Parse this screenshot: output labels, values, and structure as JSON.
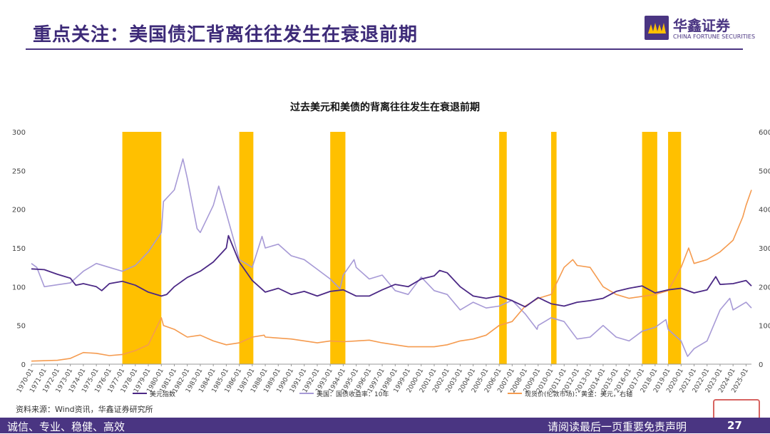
{
  "slide": {
    "title": "重点关注：美国债汇背离往往发生在衰退前期",
    "source": "资料来源：Wind资讯，华鑫证券研究所",
    "footer_left": "诚信、专业、稳健、高效",
    "footer_right": "请阅读最后一页重要免责声明",
    "page_number": "27",
    "logo_cn": "华鑫证券",
    "logo_en": "CHINA FORTUNE SECURITIES"
  },
  "colors": {
    "brand": "#4a3582",
    "recession": "#ffc000",
    "usd_index": "#4b2885",
    "us_10y": "#a79ad6",
    "gold": "#f59b4f"
  },
  "chart_data": {
    "type": "line",
    "title": "过去美元和美债的背离往往发生在衰退前期",
    "x_tick_labels": [
      "1970-01",
      "1971-01",
      "1972-01",
      "1973-01",
      "1974-01",
      "1975-01",
      "1976-01",
      "1977-01",
      "1978-01",
      "1979-01",
      "1980-01",
      "1981-01",
      "1982-01",
      "1983-01",
      "1984-01",
      "1985-01",
      "1986-01",
      "1987-01",
      "1988-01",
      "1989-01",
      "1990-01",
      "1991-01",
      "1992-01",
      "1993-01",
      "1994-01",
      "1995-01",
      "1996-01",
      "1997-01",
      "1998-01",
      "1999-01",
      "2000-01",
      "2001-01",
      "2002-01",
      "2003-01",
      "2004-01",
      "2005-01",
      "2006-01",
      "2007-01",
      "2008-01",
      "2009-01",
      "2010-01",
      "2011-01",
      "2012-01",
      "2013-01",
      "2014-01",
      "2015-01",
      "2016-01",
      "2017-01",
      "2018-01",
      "2019-01",
      "2020-01",
      "2021-01",
      "2022-01",
      "2023-01",
      "2024-01",
      "2025-01"
    ],
    "x_range": [
      "1970-01",
      "2025-06"
    ],
    "y_left": {
      "ticks": [
        0,
        50,
        100,
        150,
        200,
        250,
        300
      ],
      "range": [
        0,
        300
      ]
    },
    "y_right": {
      "ticks": [
        0,
        100,
        200,
        300,
        400,
        500,
        600
      ],
      "range": [
        0,
        600
      ]
    },
    "recession_bands": [
      {
        "start": "1977-01",
        "end": "1980-01"
      },
      {
        "start": "1986-01",
        "end": "1987-02"
      },
      {
        "start": "1993-01",
        "end": "1994-03"
      },
      {
        "start": "2006-01",
        "end": "2006-08"
      },
      {
        "start": "2010-01",
        "end": "2010-06"
      },
      {
        "start": "2017-01",
        "end": "2018-03"
      },
      {
        "start": "2019-01",
        "end": "2020-01"
      }
    ],
    "series": [
      {
        "name": "美元指数",
        "axis": "left",
        "points": [
          [
            "1970-01",
            123
          ],
          [
            "1971-01",
            122
          ],
          [
            "1972-01",
            116
          ],
          [
            "1973-01",
            111
          ],
          [
            "1973-06",
            102
          ],
          [
            "1974-01",
            104
          ],
          [
            "1975-01",
            100
          ],
          [
            "1975-06",
            95
          ],
          [
            "1976-01",
            104
          ],
          [
            "1977-01",
            107
          ],
          [
            "1978-01",
            102
          ],
          [
            "1979-01",
            93
          ],
          [
            "1980-01",
            88
          ],
          [
            "1980-06",
            90
          ],
          [
            "1981-01",
            100
          ],
          [
            "1982-01",
            112
          ],
          [
            "1983-01",
            120
          ],
          [
            "1984-01",
            132
          ],
          [
            "1985-01",
            150
          ],
          [
            "1985-03",
            166
          ],
          [
            "1986-01",
            132
          ],
          [
            "1987-01",
            108
          ],
          [
            "1988-01",
            93
          ],
          [
            "1989-01",
            98
          ],
          [
            "1990-01",
            90
          ],
          [
            "1991-01",
            94
          ],
          [
            "1992-01",
            88
          ],
          [
            "1993-01",
            94
          ],
          [
            "1994-01",
            96
          ],
          [
            "1995-01",
            88
          ],
          [
            "1996-01",
            88
          ],
          [
            "1997-01",
            96
          ],
          [
            "1998-01",
            103
          ],
          [
            "1999-01",
            100
          ],
          [
            "2000-01",
            110
          ],
          [
            "2001-01",
            114
          ],
          [
            "2001-06",
            121
          ],
          [
            "2002-01",
            118
          ],
          [
            "2003-01",
            100
          ],
          [
            "2004-01",
            88
          ],
          [
            "2005-01",
            85
          ],
          [
            "2006-01",
            88
          ],
          [
            "2007-01",
            82
          ],
          [
            "2008-01",
            74
          ],
          [
            "2009-01",
            86
          ],
          [
            "2010-01",
            78
          ],
          [
            "2011-01",
            75
          ],
          [
            "2012-01",
            80
          ],
          [
            "2013-01",
            82
          ],
          [
            "2014-01",
            85
          ],
          [
            "2015-01",
            94
          ],
          [
            "2016-01",
            98
          ],
          [
            "2017-01",
            101
          ],
          [
            "2018-01",
            92
          ],
          [
            "2019-01",
            96
          ],
          [
            "2020-01",
            98
          ],
          [
            "2021-01",
            92
          ],
          [
            "2022-01",
            96
          ],
          [
            "2022-09",
            113
          ],
          [
            "2023-01",
            103
          ],
          [
            "2024-01",
            104
          ],
          [
            "2025-01",
            108
          ],
          [
            "2025-06",
            101
          ]
        ]
      },
      {
        "name": "美国：国债收益率：10年",
        "axis": "right",
        "points": [
          [
            "1970-01",
            260
          ],
          [
            "1970-06",
            250
          ],
          [
            "1971-01",
            200
          ],
          [
            "1972-01",
            205
          ],
          [
            "1973-01",
            210
          ],
          [
            "1974-01",
            240
          ],
          [
            "1975-01",
            260
          ],
          [
            "1976-01",
            250
          ],
          [
            "1977-01",
            240
          ],
          [
            "1978-01",
            255
          ],
          [
            "1979-01",
            290
          ],
          [
            "1980-01",
            340
          ],
          [
            "1980-03",
            420
          ],
          [
            "1981-01",
            450
          ],
          [
            "1981-09",
            530
          ],
          [
            "1982-01",
            480
          ],
          [
            "1982-10",
            350
          ],
          [
            "1983-01",
            340
          ],
          [
            "1984-01",
            410
          ],
          [
            "1984-06",
            460
          ],
          [
            "1985-01",
            390
          ],
          [
            "1986-01",
            270
          ],
          [
            "1987-01",
            250
          ],
          [
            "1987-10",
            330
          ],
          [
            "1988-01",
            300
          ],
          [
            "1989-01",
            310
          ],
          [
            "1990-01",
            280
          ],
          [
            "1991-01",
            270
          ],
          [
            "1992-01",
            245
          ],
          [
            "1993-01",
            220
          ],
          [
            "1993-10",
            195
          ],
          [
            "1994-01",
            230
          ],
          [
            "1994-11",
            270
          ],
          [
            "1995-01",
            250
          ],
          [
            "1996-01",
            220
          ],
          [
            "1997-01",
            230
          ],
          [
            "1998-01",
            190
          ],
          [
            "1999-01",
            180
          ],
          [
            "2000-01",
            225
          ],
          [
            "2001-01",
            190
          ],
          [
            "2002-01",
            180
          ],
          [
            "2003-01",
            140
          ],
          [
            "2004-01",
            160
          ],
          [
            "2005-01",
            145
          ],
          [
            "2006-01",
            150
          ],
          [
            "2007-01",
            165
          ],
          [
            "2008-01",
            130
          ],
          [
            "2008-12",
            90
          ],
          [
            "2009-01",
            100
          ],
          [
            "2010-01",
            120
          ],
          [
            "2011-01",
            110
          ],
          [
            "2012-01",
            65
          ],
          [
            "2013-01",
            70
          ],
          [
            "2014-01",
            100
          ],
          [
            "2015-01",
            70
          ],
          [
            "2016-01",
            60
          ],
          [
            "2017-01",
            85
          ],
          [
            "2018-01",
            95
          ],
          [
            "2018-11",
            115
          ],
          [
            "2019-01",
            90
          ],
          [
            "2020-01",
            60
          ],
          [
            "2020-07",
            20
          ],
          [
            "2021-01",
            40
          ],
          [
            "2022-01",
            60
          ],
          [
            "2023-01",
            140
          ],
          [
            "2023-10",
            170
          ],
          [
            "2024-01",
            140
          ],
          [
            "2025-01",
            160
          ],
          [
            "2025-06",
            145
          ]
        ]
      },
      {
        "name": "现货价(伦敦市场)：黄金：美元，右轴",
        "axis": "right",
        "points": [
          [
            "1970-01",
            8
          ],
          [
            "1972-01",
            10
          ],
          [
            "1973-01",
            15
          ],
          [
            "1974-01",
            30
          ],
          [
            "1975-01",
            28
          ],
          [
            "1976-01",
            22
          ],
          [
            "1977-01",
            25
          ],
          [
            "1978-01",
            35
          ],
          [
            "1979-01",
            50
          ],
          [
            "1980-01",
            120
          ],
          [
            "1980-03",
            100
          ],
          [
            "1981-01",
            90
          ],
          [
            "1982-01",
            70
          ],
          [
            "1983-01",
            75
          ],
          [
            "1984-01",
            60
          ],
          [
            "1985-01",
            50
          ],
          [
            "1986-01",
            55
          ],
          [
            "1987-01",
            70
          ],
          [
            "1987-12",
            75
          ],
          [
            "1988-01",
            70
          ],
          [
            "1990-01",
            65
          ],
          [
            "1992-01",
            55
          ],
          [
            "1993-01",
            60
          ],
          [
            "1994-01",
            58
          ],
          [
            "1995-01",
            60
          ],
          [
            "1996-01",
            62
          ],
          [
            "1997-01",
            55
          ],
          [
            "1998-01",
            50
          ],
          [
            "1999-01",
            45
          ],
          [
            "2000-01",
            45
          ],
          [
            "2001-01",
            45
          ],
          [
            "2002-01",
            50
          ],
          [
            "2003-01",
            60
          ],
          [
            "2004-01",
            65
          ],
          [
            "2005-01",
            75
          ],
          [
            "2006-01",
            100
          ],
          [
            "2007-01",
            110
          ],
          [
            "2008-01",
            150
          ],
          [
            "2009-01",
            170
          ],
          [
            "2010-01",
            180
          ],
          [
            "2011-01",
            250
          ],
          [
            "2011-09",
            270
          ],
          [
            "2012-01",
            255
          ],
          [
            "2013-01",
            250
          ],
          [
            "2014-01",
            200
          ],
          [
            "2015-01",
            180
          ],
          [
            "2016-01",
            170
          ],
          [
            "2017-01",
            175
          ],
          [
            "2018-01",
            180
          ],
          [
            "2019-01",
            190
          ],
          [
            "2020-01",
            250
          ],
          [
            "2020-08",
            300
          ],
          [
            "2021-01",
            260
          ],
          [
            "2022-01",
            270
          ],
          [
            "2023-01",
            290
          ],
          [
            "2024-01",
            320
          ],
          [
            "2024-10",
            380
          ],
          [
            "2025-01",
            410
          ],
          [
            "2025-06",
            450
          ]
        ]
      }
    ]
  }
}
